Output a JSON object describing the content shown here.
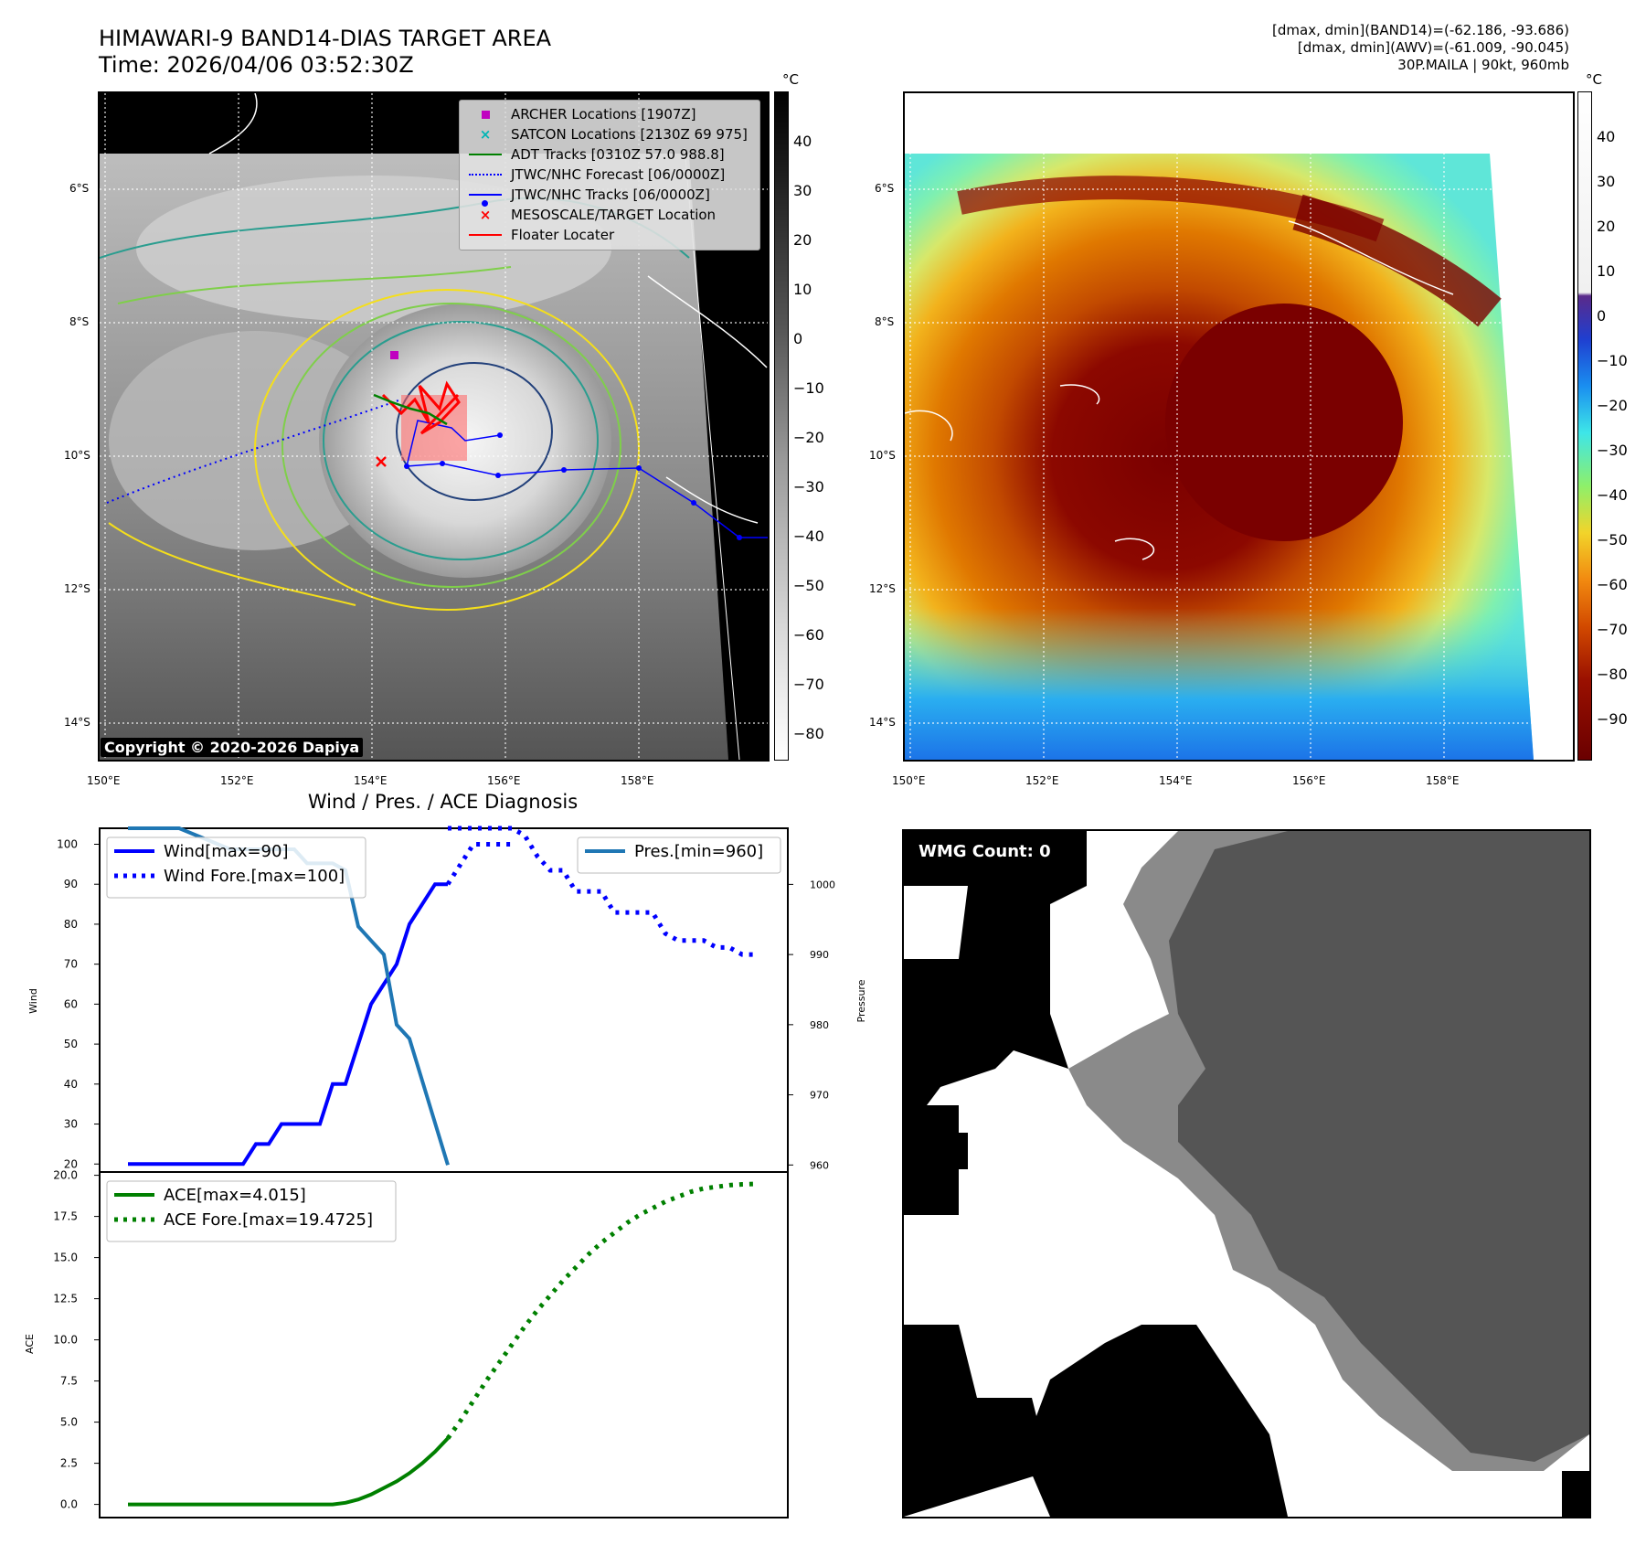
{
  "header": {
    "title_line1": "HIMAWARI-9 BAND14-DIAS TARGET AREA",
    "title_line2": "Time: 2026/04/06 03:52:30Z"
  },
  "info": {
    "line1": "[dmax, dmin](BAND14)=(-62.186, -93.686)",
    "line2": "[dmax, dmin](AWV)=(-61.009, -90.045)",
    "line3": "30P.MAILA | 90kt, 960mb"
  },
  "map_axes": {
    "lon_labels": [
      "150°E",
      "152°E",
      "154°E",
      "156°E",
      "158°E"
    ],
    "lat_labels": [
      "6°S",
      "8°S",
      "10°S",
      "12°S",
      "14°S"
    ]
  },
  "legend": {
    "items": [
      {
        "label": "ARCHER Locations [1907Z]",
        "color": "#c000c0",
        "marker": "square"
      },
      {
        "label": "SATCON Locations [2130Z 69 975]",
        "color": "#00b5b5",
        "marker": "x"
      },
      {
        "label": "ADT Tracks [0310Z 57.0 988.8]",
        "color": "#008000",
        "marker": "line"
      },
      {
        "label": "JTWC/NHC Forecast [06/0000Z]",
        "color": "#0000ff",
        "marker": "dotted"
      },
      {
        "label": "JTWC/NHC Tracks [06/0000Z]",
        "color": "#0000ff",
        "marker": "line-dot"
      },
      {
        "label": "MESOSCALE/TARGET Location",
        "color": "#ff0000",
        "marker": "x"
      },
      {
        "label": "Floater Locater",
        "color": "#ff0000",
        "marker": "line"
      }
    ]
  },
  "copyright": "Copyright © 2020-2026 Dapiya",
  "colorbar_left": {
    "unit": "°C",
    "ticks": [
      "40",
      "30",
      "20",
      "10",
      "0",
      "−10",
      "−20",
      "−30",
      "−40",
      "−50",
      "−60",
      "−70",
      "−80"
    ]
  },
  "colorbar_right": {
    "unit": "°C",
    "ticks": [
      "40",
      "30",
      "20",
      "10",
      "0",
      "−10",
      "−20",
      "−30",
      "−40",
      "−50",
      "−60",
      "−70",
      "−80",
      "−90"
    ]
  },
  "diagnosis_title": "Wind / Pres. / ACE Diagnosis",
  "wmg": {
    "count_label": "WMG Count: 0"
  },
  "colors": {
    "wind": "#0000ff",
    "pressure": "#1f77b4",
    "ace": "#008000"
  },
  "chart_data": [
    {
      "type": "line",
      "ylabel": "Wind",
      "ylim": [
        18,
        104
      ],
      "y_ticks": [
        "20",
        "30",
        "40",
        "50",
        "60",
        "70",
        "80",
        "90",
        "100"
      ],
      "legend_placement": "top-left",
      "series": [
        {
          "name": "Wind[max=90]",
          "style": "solid",
          "x": [
            0,
            1,
            2,
            3,
            4,
            5,
            6,
            7,
            8,
            9,
            10,
            11,
            12,
            13,
            14,
            15,
            16,
            17,
            18,
            19,
            20,
            21,
            22,
            23,
            24,
            25
          ],
          "values": [
            20,
            20,
            20,
            20,
            20,
            20,
            20,
            20,
            20,
            20,
            25,
            25,
            30,
            30,
            30,
            30,
            40,
            40,
            50,
            60,
            65,
            70,
            80,
            85,
            90,
            90
          ]
        },
        {
          "name": "Wind Fore.[max=100]",
          "style": "dotted",
          "x": [
            25,
            26,
            27,
            28,
            29,
            30
          ],
          "values": [
            90,
            95,
            100,
            100,
            100,
            100
          ]
        }
      ]
    },
    {
      "type": "line",
      "ylabel": "Pressure",
      "ylim": [
        959,
        1008
      ],
      "y_ticks": [
        "960",
        "970",
        "980",
        "990",
        "1000"
      ],
      "legend_placement": "top-right",
      "series": [
        {
          "name": "Pres.[min=960]",
          "style": "solid",
          "x": [
            0,
            4,
            8,
            9,
            13,
            14,
            15,
            16,
            17,
            18,
            19,
            20,
            21,
            22,
            23,
            24,
            25
          ],
          "values": [
            1008,
            1008,
            1005,
            1005,
            1005,
            1003,
            1003,
            1003,
            1002,
            994,
            992,
            990,
            980,
            978,
            972,
            966,
            960
          ]
        },
        {
          "name": "",
          "style": "dotted",
          "x": [
            25,
            26,
            27,
            28,
            29,
            30,
            31,
            32,
            33,
            34,
            35,
            36,
            37,
            38,
            39,
            40,
            41,
            42,
            43,
            44,
            45,
            46,
            47,
            48,
            49
          ],
          "values": [
            1008,
            1008,
            1008,
            1008,
            1008,
            1008,
            1007,
            1004,
            1002,
            1002,
            999,
            999,
            999,
            996,
            996,
            996,
            996,
            993,
            992,
            992,
            992,
            991,
            991,
            990,
            990
          ]
        }
      ]
    },
    {
      "type": "line",
      "ylabel": "ACE",
      "ylim": [
        -0.8,
        20.2
      ],
      "y_ticks": [
        "0.0",
        "2.5",
        "5.0",
        "7.5",
        "10.0",
        "12.5",
        "15.0",
        "17.5",
        "20.0"
      ],
      "legend_placement": "top-left",
      "series": [
        {
          "name": "ACE[max=4.015]",
          "style": "solid",
          "x": [
            0,
            16,
            17,
            18,
            19,
            20,
            21,
            22,
            23,
            24,
            25
          ],
          "values": [
            0,
            0,
            0.1,
            0.3,
            0.6,
            1.0,
            1.4,
            1.9,
            2.5,
            3.2,
            4.015
          ]
        },
        {
          "name": "ACE Fore.[max=19.4725]",
          "style": "dotted",
          "x": [
            25,
            26,
            27,
            28,
            29,
            30,
            31,
            32,
            33,
            34,
            35,
            36,
            37,
            38,
            39,
            40,
            41,
            42,
            43,
            44,
            45,
            46,
            47,
            48,
            49
          ],
          "values": [
            4.015,
            5.1,
            6.3,
            7.5,
            8.6,
            9.7,
            10.8,
            11.8,
            12.7,
            13.6,
            14.4,
            15.2,
            15.9,
            16.5,
            17.1,
            17.6,
            18.0,
            18.4,
            18.7,
            19.0,
            19.2,
            19.3,
            19.4,
            19.45,
            19.4725
          ]
        }
      ]
    }
  ]
}
